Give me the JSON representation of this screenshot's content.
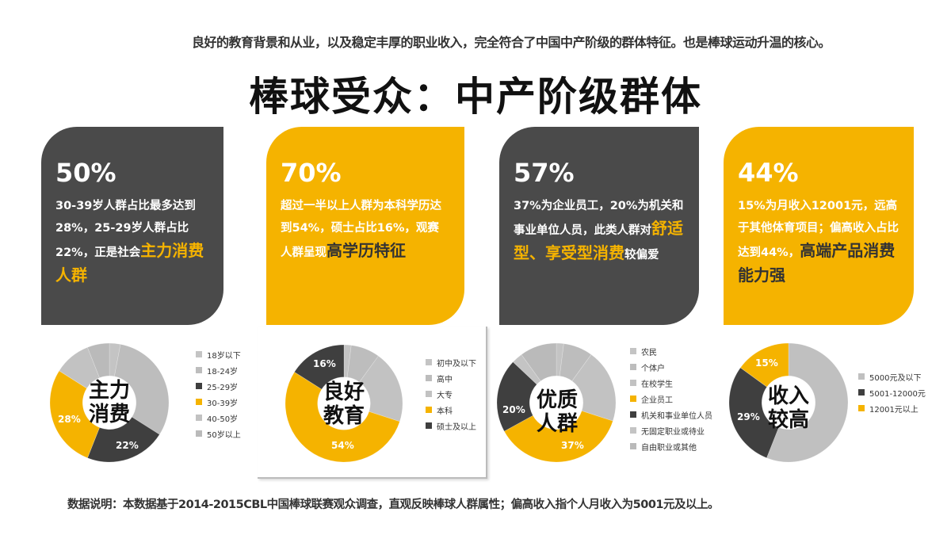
{
  "header": {
    "subtitle": "良好的教育背景和从业，以及稳定丰厚的职业收入，完全符合了中国中产阶级的群体特征。也是棒球运动升温的核心。",
    "title": "棒球受众：中产阶级群体"
  },
  "colors": {
    "dark": "#4a4a4a",
    "gold": "#f5b300",
    "segment_dark": "#3f3f3f",
    "segment_gray": "#c0c0c0"
  },
  "cards": [
    {
      "stat": "50%",
      "text_before": "30-39岁人群占比最多达到28%，25-29岁人群占比22%，正是社会",
      "highlight": "主力消费人群",
      "text_after": "",
      "theme": "dark"
    },
    {
      "stat": "70%",
      "text_before": "超过一半以上人群为本科学历达到54%，硕士占比16%，观赛人群呈现",
      "highlight": "高学历特征",
      "text_after": "",
      "theme": "gold"
    },
    {
      "stat": "57%",
      "text_before": "37%为企业员工，20%为机关和事业单位人员，此类人群对",
      "highlight": "舒适型、享受型消费",
      "text_after": "较偏爱",
      "theme": "dark"
    },
    {
      "stat": "44%",
      "text_before": "15%为月收入12001元，远高于其他体育项目；偏高收入占比达到44%，",
      "highlight": "高端产品消费能力强",
      "text_after": "",
      "theme": "gold"
    }
  ],
  "chart_data": [
    {
      "type": "pie",
      "variant": "donut",
      "title": "主力消费",
      "center_label": [
        "主力",
        "消费"
      ],
      "categories": [
        "18岁以下",
        "18-24岁",
        "25-29岁",
        "30-39岁",
        "40-50岁",
        "50岁以上"
      ],
      "values": [
        3,
        31,
        22,
        28,
        10,
        6
      ],
      "colors": [
        "#c4c4c4",
        "#bdbdbd",
        "#3f3f3f",
        "#f5b300",
        "#c2c2c2",
        "#bababa"
      ],
      "data_labels": [
        {
          "category": "30-39岁",
          "text": "28%"
        },
        {
          "category": "25-29岁",
          "text": "22%"
        }
      ],
      "legend_position": "right"
    },
    {
      "type": "pie",
      "variant": "donut",
      "title": "良好教育",
      "center_label": [
        "良好",
        "教育"
      ],
      "categories": [
        "初中及以下",
        "高中",
        "大专",
        "本科",
        "硕士及以上"
      ],
      "values": [
        2,
        8,
        20,
        54,
        16
      ],
      "colors": [
        "#c4c4c4",
        "#bdbdbd",
        "#c2c2c2",
        "#f5b300",
        "#3f3f3f"
      ],
      "data_labels": [
        {
          "category": "硕士及以上",
          "text": "16%"
        },
        {
          "category": "本科",
          "text": "54%"
        }
      ],
      "legend_position": "right"
    },
    {
      "type": "pie",
      "variant": "donut",
      "title": "优质人群",
      "center_label": [
        "优质",
        "人群"
      ],
      "categories": [
        "农民",
        "个体户",
        "在校学生",
        "企业员工",
        "机关和事业单位人员",
        "无固定职业或待业",
        "自由职业或其他"
      ],
      "values": [
        2,
        8,
        20,
        37,
        20,
        3,
        10
      ],
      "colors": [
        "#c4c4c4",
        "#bdbdbd",
        "#c2c2c2",
        "#f5b300",
        "#3f3f3f",
        "#c4c4c4",
        "#bababa"
      ],
      "data_labels": [
        {
          "category": "机关和事业单位人员",
          "text": "20%"
        },
        {
          "category": "企业员工",
          "text": "37%"
        }
      ],
      "legend_position": "right"
    },
    {
      "type": "pie",
      "variant": "donut",
      "title": "收入较高",
      "center_label": [
        "收入",
        "较高"
      ],
      "categories": [
        "5000元及以下",
        "5001-12000元",
        "12001元以上"
      ],
      "values": [
        56,
        29,
        15
      ],
      "colors": [
        "#c0c0c0",
        "#3f3f3f",
        "#f5b300"
      ],
      "data_labels": [
        {
          "category": "12001元以上",
          "text": "15%"
        },
        {
          "category": "5001-12000元",
          "text": "29%"
        }
      ],
      "legend_position": "right"
    }
  ],
  "footer": {
    "note": "数据说明：本数据基于2014-2015CBL中国棒球联赛观众调查，直观反映棒球人群属性；偏高收入指个人月收入为5001元及以上。"
  }
}
